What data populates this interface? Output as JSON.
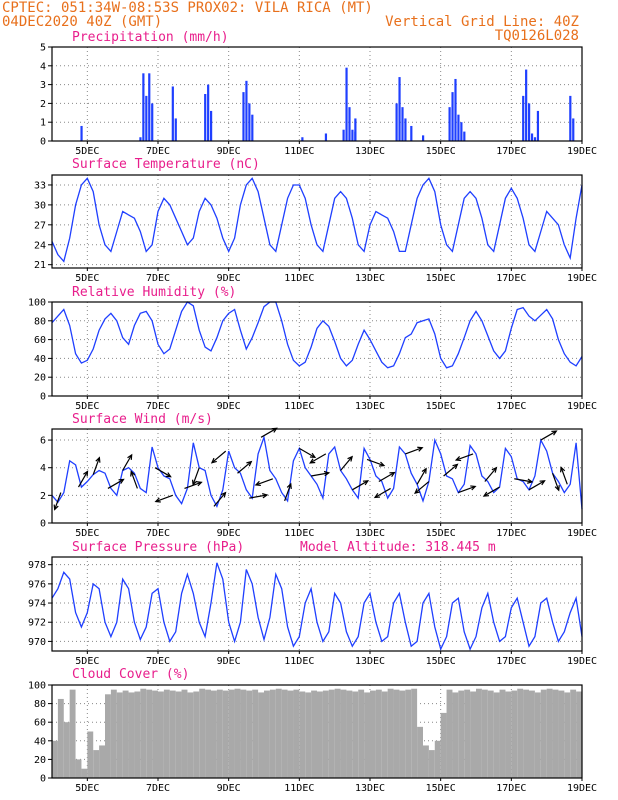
{
  "header": {
    "line1_left": "CPTEC:  051:34W-08:53S  PROX02: VILA RICA (MT)",
    "line2_left": "04DEC2020 40Z (GMT)",
    "line2_right": "Vertical Grid Line: 40Z",
    "line3_right": "TQ0126L028"
  },
  "colors": {
    "header_text": "#e8701c",
    "panel_title": "#e81e8c",
    "series": "#1f3fff",
    "cloud_fill": "#a9a9a9",
    "wind_arrow": "#000000"
  },
  "x_axis": {
    "start_hour": 0,
    "end_hour": 360,
    "tick_labels": [
      "5DEC",
      "7DEC",
      "9DEC",
      "11DEC",
      "13DEC",
      "15DEC",
      "17DEC",
      "19DEC"
    ]
  },
  "chart_data": [
    {
      "id": "precip",
      "type": "bar",
      "title": "Precipitation (mm/h)",
      "ylim": [
        0,
        5
      ],
      "yticks": [
        "0",
        "1",
        "2",
        "3",
        "4",
        "5"
      ],
      "ytick_values": [
        0,
        1,
        2,
        3,
        4,
        5
      ],
      "x": [
        20,
        60,
        62,
        64,
        66,
        68,
        82,
        84,
        104,
        106,
        108,
        130,
        132,
        134,
        136,
        170,
        186,
        198,
        200,
        202,
        204,
        206,
        206,
        234,
        236,
        238,
        240,
        244,
        252,
        270,
        272,
        274,
        276,
        278,
        280,
        320,
        322,
        324,
        326,
        328,
        330,
        352,
        354
      ],
      "values": [
        0.8,
        0.2,
        3.6,
        2.4,
        3.6,
        2.0,
        2.9,
        1.2,
        2.5,
        3.0,
        1.6,
        2.6,
        3.2,
        2.0,
        1.4,
        0.2,
        0.4,
        0.6,
        3.9,
        1.8,
        0.6,
        0.5,
        1.2,
        2.0,
        3.4,
        1.8,
        1.2,
        0.8,
        0.3,
        1.8,
        2.6,
        3.3,
        1.4,
        1.0,
        0.5,
        2.4,
        3.8,
        2.0,
        0.4,
        0.2,
        1.6,
        2.4,
        1.2
      ]
    },
    {
      "id": "temp",
      "type": "line",
      "title": "Surface Temperature (nC)",
      "ylim": [
        20.5,
        34.5
      ],
      "yticks": [
        "21",
        "24",
        "27",
        "30",
        "33"
      ],
      "ytick_values": [
        21,
        24,
        27,
        30,
        33
      ],
      "x": [
        0,
        4,
        8,
        12,
        16,
        20,
        24,
        28,
        32,
        36,
        40,
        44,
        48,
        52,
        56,
        60,
        64,
        68,
        72,
        76,
        80,
        84,
        88,
        92,
        96,
        100,
        104,
        108,
        112,
        116,
        120,
        124,
        128,
        132,
        136,
        140,
        144,
        148,
        152,
        156,
        160,
        164,
        168,
        172,
        176,
        180,
        184,
        188,
        192,
        196,
        200,
        204,
        208,
        212,
        216,
        220,
        224,
        228,
        232,
        236,
        240,
        244,
        248,
        252,
        256,
        260,
        264,
        268,
        272,
        276,
        280,
        284,
        288,
        292,
        296,
        300,
        304,
        308,
        312,
        316,
        320,
        324,
        328,
        332,
        336,
        340,
        344,
        348,
        352,
        356,
        360
      ],
      "values": [
        24.5,
        22.5,
        21.5,
        25,
        30,
        33,
        34,
        32,
        27,
        24,
        23,
        26,
        29,
        28.5,
        28,
        26,
        23,
        24,
        29,
        31,
        30,
        28,
        26,
        24,
        25,
        29,
        31,
        30,
        28,
        25,
        23,
        25,
        30,
        33,
        34,
        32,
        28,
        24,
        23,
        27,
        31,
        33,
        33,
        31,
        27,
        24,
        23,
        27,
        31,
        32,
        31,
        28,
        24,
        23,
        27,
        29,
        28.5,
        28,
        26,
        23,
        23,
        27,
        31,
        33,
        34,
        32,
        27,
        24,
        23,
        27,
        31,
        32,
        31,
        28,
        24,
        23,
        27,
        31,
        32.5,
        31,
        28,
        24,
        23,
        26,
        29,
        28,
        27,
        24,
        22,
        28,
        33
      ]
    },
    {
      "id": "rh",
      "type": "line",
      "title": "Relative Humidity (%)",
      "ylim": [
        0,
        100
      ],
      "yticks": [
        "0",
        "20",
        "40",
        "60",
        "80",
        "100"
      ],
      "ytick_values": [
        0,
        20,
        40,
        60,
        80,
        100
      ],
      "x": [
        0,
        4,
        8,
        12,
        16,
        20,
        24,
        28,
        32,
        36,
        40,
        44,
        48,
        52,
        56,
        60,
        64,
        68,
        72,
        76,
        80,
        84,
        88,
        92,
        96,
        100,
        104,
        108,
        112,
        116,
        120,
        124,
        128,
        132,
        136,
        140,
        144,
        148,
        152,
        156,
        160,
        164,
        168,
        172,
        176,
        180,
        184,
        188,
        192,
        196,
        200,
        204,
        208,
        212,
        216,
        220,
        224,
        228,
        232,
        236,
        240,
        244,
        248,
        252,
        256,
        260,
        264,
        268,
        272,
        276,
        280,
        284,
        288,
        292,
        296,
        300,
        304,
        308,
        312,
        316,
        320,
        324,
        328,
        332,
        336,
        340,
        344,
        348,
        352,
        356,
        360
      ],
      "values": [
        78,
        85,
        92,
        75,
        45,
        35,
        38,
        50,
        70,
        82,
        88,
        80,
        62,
        55,
        75,
        88,
        90,
        80,
        55,
        45,
        50,
        70,
        90,
        100,
        96,
        70,
        52,
        48,
        62,
        80,
        88,
        92,
        70,
        50,
        62,
        78,
        95,
        100,
        100,
        80,
        55,
        38,
        32,
        36,
        52,
        72,
        80,
        74,
        58,
        40,
        32,
        38,
        55,
        70,
        60,
        48,
        36,
        30,
        32,
        45,
        62,
        66,
        78,
        80,
        82,
        66,
        40,
        30,
        32,
        45,
        62,
        80,
        90,
        80,
        64,
        48,
        40,
        48,
        72,
        92,
        94,
        85,
        80,
        86,
        92,
        82,
        60,
        45,
        36,
        32,
        42
      ]
    },
    {
      "id": "wind",
      "type": "line",
      "title": "Surface Wind (m/s)",
      "ylim": [
        0,
        6.8
      ],
      "yticks": [
        "0",
        "2",
        "4",
        "6"
      ],
      "ytick_values": [
        0,
        2,
        4,
        6
      ],
      "x": [
        0,
        4,
        8,
        12,
        16,
        20,
        24,
        28,
        32,
        36,
        40,
        44,
        48,
        52,
        56,
        60,
        64,
        68,
        72,
        76,
        80,
        84,
        88,
        92,
        96,
        100,
        104,
        108,
        112,
        116,
        120,
        124,
        128,
        132,
        136,
        140,
        144,
        148,
        152,
        156,
        160,
        164,
        168,
        172,
        176,
        180,
        184,
        188,
        192,
        196,
        200,
        204,
        208,
        212,
        216,
        220,
        224,
        228,
        232,
        236,
        240,
        244,
        248,
        252,
        256,
        260,
        264,
        268,
        272,
        276,
        280,
        284,
        288,
        292,
        296,
        300,
        304,
        308,
        312,
        316,
        320,
        324,
        328,
        332,
        336,
        340,
        344,
        348,
        352,
        356,
        360
      ],
      "values": [
        2,
        1.5,
        2.2,
        4.5,
        4.2,
        2.6,
        3,
        3.5,
        3.8,
        3.6,
        2.5,
        2,
        3.8,
        4,
        3.6,
        2.5,
        2.2,
        5.5,
        4,
        3.4,
        3.2,
        2,
        1.4,
        2.5,
        5.8,
        4,
        3.8,
        2,
        1.2,
        2.4,
        5.2,
        4,
        3.6,
        2.4,
        1.8,
        5,
        6.2,
        3.8,
        3.2,
        2.2,
        1.6,
        4.5,
        5.4,
        4,
        3.4,
        2.8,
        1.8,
        5,
        5.5,
        3.8,
        3.2,
        2.4,
        1.8,
        5.4,
        4.6,
        3.4,
        3,
        1.8,
        2.5,
        5.5,
        5,
        3.6,
        2.8,
        1.6,
        3,
        6,
        5,
        3.4,
        3.2,
        2.2,
        2.8,
        5.6,
        5,
        3.4,
        3,
        2.2,
        2.6,
        5.4,
        4.8,
        3.2,
        3,
        2.4,
        3.4,
        6,
        5.2,
        3.6,
        3,
        2.2,
        2.8,
        5.8,
        1
      ]
    },
    {
      "id": "pressure",
      "type": "line",
      "title": "Surface Pressure (hPa)",
      "annotation": "Model Altitude: 318.445 m",
      "ylim": [
        969,
        978.8
      ],
      "yticks": [
        "970",
        "972",
        "974",
        "976",
        "978"
      ],
      "ytick_values": [
        970,
        972,
        974,
        976,
        978
      ],
      "x": [
        0,
        4,
        8,
        12,
        16,
        20,
        24,
        28,
        32,
        36,
        40,
        44,
        48,
        52,
        56,
        60,
        64,
        68,
        72,
        76,
        80,
        84,
        88,
        92,
        96,
        100,
        104,
        108,
        112,
        116,
        120,
        124,
        128,
        132,
        136,
        140,
        144,
        148,
        152,
        156,
        160,
        164,
        168,
        172,
        176,
        180,
        184,
        188,
        192,
        196,
        200,
        204,
        208,
        212,
        216,
        220,
        224,
        228,
        232,
        236,
        240,
        244,
        248,
        252,
        256,
        260,
        264,
        268,
        272,
        276,
        280,
        284,
        288,
        292,
        296,
        300,
        304,
        308,
        312,
        316,
        320,
        324,
        328,
        332,
        336,
        340,
        344,
        348,
        352,
        356,
        360
      ],
      "values": [
        974.5,
        975.5,
        977.2,
        976.5,
        973,
        971.5,
        973,
        976,
        975.5,
        972,
        970.5,
        972,
        976.5,
        975.5,
        972,
        970.2,
        971.5,
        975,
        975.5,
        972,
        970,
        971,
        975,
        977,
        975,
        972,
        970.5,
        974,
        978.2,
        976.5,
        972,
        970,
        972,
        977.5,
        976,
        972.5,
        970.2,
        972.5,
        977,
        975.5,
        971.5,
        969.5,
        970.5,
        974,
        975.5,
        972,
        970,
        971,
        975,
        974,
        971,
        969.5,
        970.5,
        974,
        975,
        972,
        970,
        970.5,
        974,
        975,
        972,
        969.5,
        970,
        974,
        975,
        971.5,
        969.2,
        970.5,
        974,
        974.5,
        971,
        969.2,
        970.5,
        973.5,
        975,
        972,
        970,
        970.5,
        973.5,
        974.5,
        972,
        969.5,
        970.5,
        974,
        974.5,
        972,
        970,
        971,
        973,
        974.5,
        970.5
      ]
    },
    {
      "id": "cloud",
      "type": "area",
      "title": "Cloud Cover (%)",
      "ylim": [
        0,
        100
      ],
      "yticks": [
        "0",
        "20",
        "40",
        "60",
        "80",
        "100"
      ],
      "ytick_values": [
        0,
        20,
        40,
        60,
        80,
        100
      ],
      "x": [
        0,
        4,
        8,
        12,
        16,
        20,
        24,
        28,
        32,
        36,
        40,
        44,
        48,
        52,
        56,
        60,
        64,
        68,
        72,
        76,
        80,
        84,
        88,
        92,
        96,
        100,
        104,
        108,
        112,
        116,
        120,
        124,
        128,
        132,
        136,
        140,
        144,
        148,
        152,
        156,
        160,
        164,
        168,
        172,
        176,
        180,
        184,
        188,
        192,
        196,
        200,
        204,
        208,
        212,
        216,
        220,
        224,
        228,
        232,
        236,
        240,
        244,
        248,
        252,
        256,
        260,
        264,
        268,
        272,
        276,
        280,
        284,
        288,
        292,
        296,
        300,
        304,
        308,
        312,
        316,
        320,
        324,
        328,
        332,
        336,
        340,
        344,
        348,
        352,
        356,
        360
      ],
      "values": [
        40,
        85,
        60,
        95,
        20,
        10,
        50,
        30,
        35,
        90,
        95,
        92,
        94,
        92,
        93,
        96,
        95,
        94,
        93,
        95,
        94,
        93,
        95,
        92,
        93,
        96,
        95,
        94,
        95,
        94,
        95,
        96,
        95,
        94,
        95,
        92,
        94,
        95,
        96,
        95,
        94,
        95,
        93,
        92,
        94,
        93,
        94,
        95,
        96,
        95,
        94,
        93,
        95,
        92,
        94,
        95,
        93,
        96,
        95,
        94,
        95,
        96,
        55,
        35,
        30,
        40,
        70,
        95,
        92,
        94,
        95,
        93,
        96,
        95,
        94,
        92,
        95,
        93,
        94,
        96,
        95,
        94,
        92,
        95,
        96,
        95,
        94,
        92,
        95,
        93,
        94
      ]
    }
  ],
  "wind_arrows": {
    "x": [
      6,
      18,
      28,
      38,
      48,
      58,
      70,
      82,
      90,
      100,
      110,
      118,
      126,
      134,
      142,
      150,
      158,
      168,
      176,
      186,
      196,
      204,
      214,
      222,
      230,
      240,
      248,
      256,
      266,
      276,
      286,
      294,
      304,
      314,
      324,
      332,
      340,
      350
    ],
    "dir_deg": [
      200,
      30,
      20,
      60,
      30,
      340,
      120,
      250,
      70,
      200,
      40,
      230,
      50,
      80,
      60,
      250,
      20,
      120,
      80,
      240,
      40,
      60,
      110,
      60,
      240,
      70,
      30,
      230,
      50,
      70,
      250,
      40,
      240,
      100,
      60,
      60,
      160,
      340
    ]
  }
}
